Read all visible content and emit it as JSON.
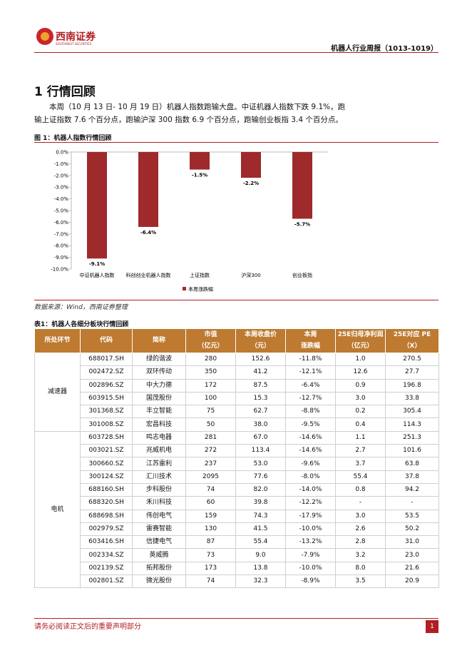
{
  "header": {
    "brand": "西南证券",
    "brand_en": "SOUTHWEST SECURITIES",
    "report": "机器人行业周报（1013-1019）"
  },
  "section": {
    "title": "1 行情回顾",
    "paragraph": "本周（10 月 13 日- 10 月 19 日）机器人指数跑输大盘。中证机器人指数下跌 9.1%，跑输上证指数 7.6 个百分点，跑输沪深 300 指数 6.9 个百分点，跑输创业板指 3.4 个百分点。"
  },
  "figure": {
    "caption": "图 1：机器人指数行情回顾",
    "source": "数据来源：Wind，西南证券整理"
  },
  "chart_data": {
    "type": "bar",
    "categories": [
      "中证机器人指数",
      "科创创业机器人指数",
      "上证指数",
      "沪深300",
      "创业板指"
    ],
    "series": [
      {
        "name": "本周涨跌幅",
        "color": "#9e2a2b",
        "values": [
          -9.1,
          -6.4,
          -1.5,
          -2.2,
          -5.7
        ],
        "value_labels": [
          "-9.1%",
          "-6.4%",
          "-1.5%",
          "-2.2%",
          "-5.7%"
        ]
      }
    ],
    "ylim": [
      -10,
      0
    ],
    "yticks": [
      {
        "value": 0,
        "label": "0.0%"
      },
      {
        "value": -1,
        "label": "-1.0%"
      },
      {
        "value": -2,
        "label": "-2.0%"
      },
      {
        "value": -3,
        "label": "-3.0%"
      },
      {
        "value": -4,
        "label": "-4.0%"
      },
      {
        "value": -5,
        "label": "-5.0%"
      },
      {
        "value": -6,
        "label": "-6.0%"
      },
      {
        "value": -7,
        "label": "-7.0%"
      },
      {
        "value": -8,
        "label": "-8.0%"
      },
      {
        "value": -9,
        "label": "-9.0%"
      },
      {
        "value": -10,
        "label": "-10.0%"
      }
    ],
    "legend": "bottom"
  },
  "table": {
    "caption": "表1：机器人各细分板块行情回顾",
    "header": [
      [
        "所处环节"
      ],
      [
        "代码"
      ],
      [
        "简称"
      ],
      [
        "市值",
        "（亿元）"
      ],
      [
        "本周收盘价",
        "（元）"
      ],
      [
        "本周",
        "涨跌幅"
      ],
      [
        "25E归母净利润",
        "（亿元）"
      ],
      [
        "25E对应 PE",
        "（X）"
      ]
    ],
    "groups": [
      {
        "name": "减速器",
        "rows": [
          [
            "688017.SH",
            "绿的谐波",
            "280",
            "152.6",
            "-11.8%",
            "1.0",
            "270.5"
          ],
          [
            "002472.SZ",
            "双环传动",
            "350",
            "41.2",
            "-12.1%",
            "12.6",
            "27.7"
          ],
          [
            "002896.SZ",
            "中大力德",
            "172",
            "87.5",
            "-6.4%",
            "0.9",
            "196.8"
          ],
          [
            "603915.SH",
            "国茂股份",
            "100",
            "15.3",
            "-12.7%",
            "3.0",
            "33.8"
          ],
          [
            "301368.SZ",
            "丰立智能",
            "75",
            "62.7",
            "-8.8%",
            "0.2",
            "305.4"
          ],
          [
            "301008.SZ",
            "宏昌科技",
            "50",
            "38.0",
            "-9.5%",
            "0.4",
            "114.3"
          ]
        ]
      },
      {
        "name": "电机",
        "rows": [
          [
            "603728.SH",
            "鸣志电器",
            "281",
            "67.0",
            "-14.6%",
            "1.1",
            "251.3"
          ],
          [
            "003021.SZ",
            "兆威机电",
            "272",
            "113.4",
            "-14.6%",
            "2.7",
            "101.6"
          ],
          [
            "300660.SZ",
            "江苏雷利",
            "237",
            "53.0",
            "-9.6%",
            "3.7",
            "63.8"
          ],
          [
            "300124.SZ",
            "汇川技术",
            "2095",
            "77.6",
            "-8.0%",
            "55.4",
            "37.8"
          ],
          [
            "688160.SH",
            "步科股份",
            "74",
            "82.0",
            "-14.0%",
            "0.8",
            "94.2"
          ],
          [
            "688320.SH",
            "禾川科技",
            "60",
            "39.8",
            "-12.2%",
            "-",
            "-"
          ],
          [
            "688698.SH",
            "伟创电气",
            "159",
            "74.3",
            "-17.9%",
            "3.0",
            "53.5"
          ],
          [
            "002979.SZ",
            "雷赛智能",
            "130",
            "41.5",
            "-10.0%",
            "2.6",
            "50.2"
          ],
          [
            "603416.SH",
            "信捷电气",
            "87",
            "55.4",
            "-13.2%",
            "2.8",
            "31.0"
          ],
          [
            "002334.SZ",
            "英威腾",
            "73",
            "9.0",
            "-7.9%",
            "3.2",
            "23.0"
          ],
          [
            "002139.SZ",
            "拓邦股份",
            "173",
            "13.8",
            "-10.0%",
            "8.0",
            "21.6"
          ],
          [
            "002801.SZ",
            "微光股份",
            "74",
            "32.3",
            "-8.9%",
            "3.5",
            "20.9"
          ]
        ]
      }
    ]
  },
  "footer": {
    "notice": "请务必阅读正文后的重要声明部分",
    "page": "1"
  }
}
